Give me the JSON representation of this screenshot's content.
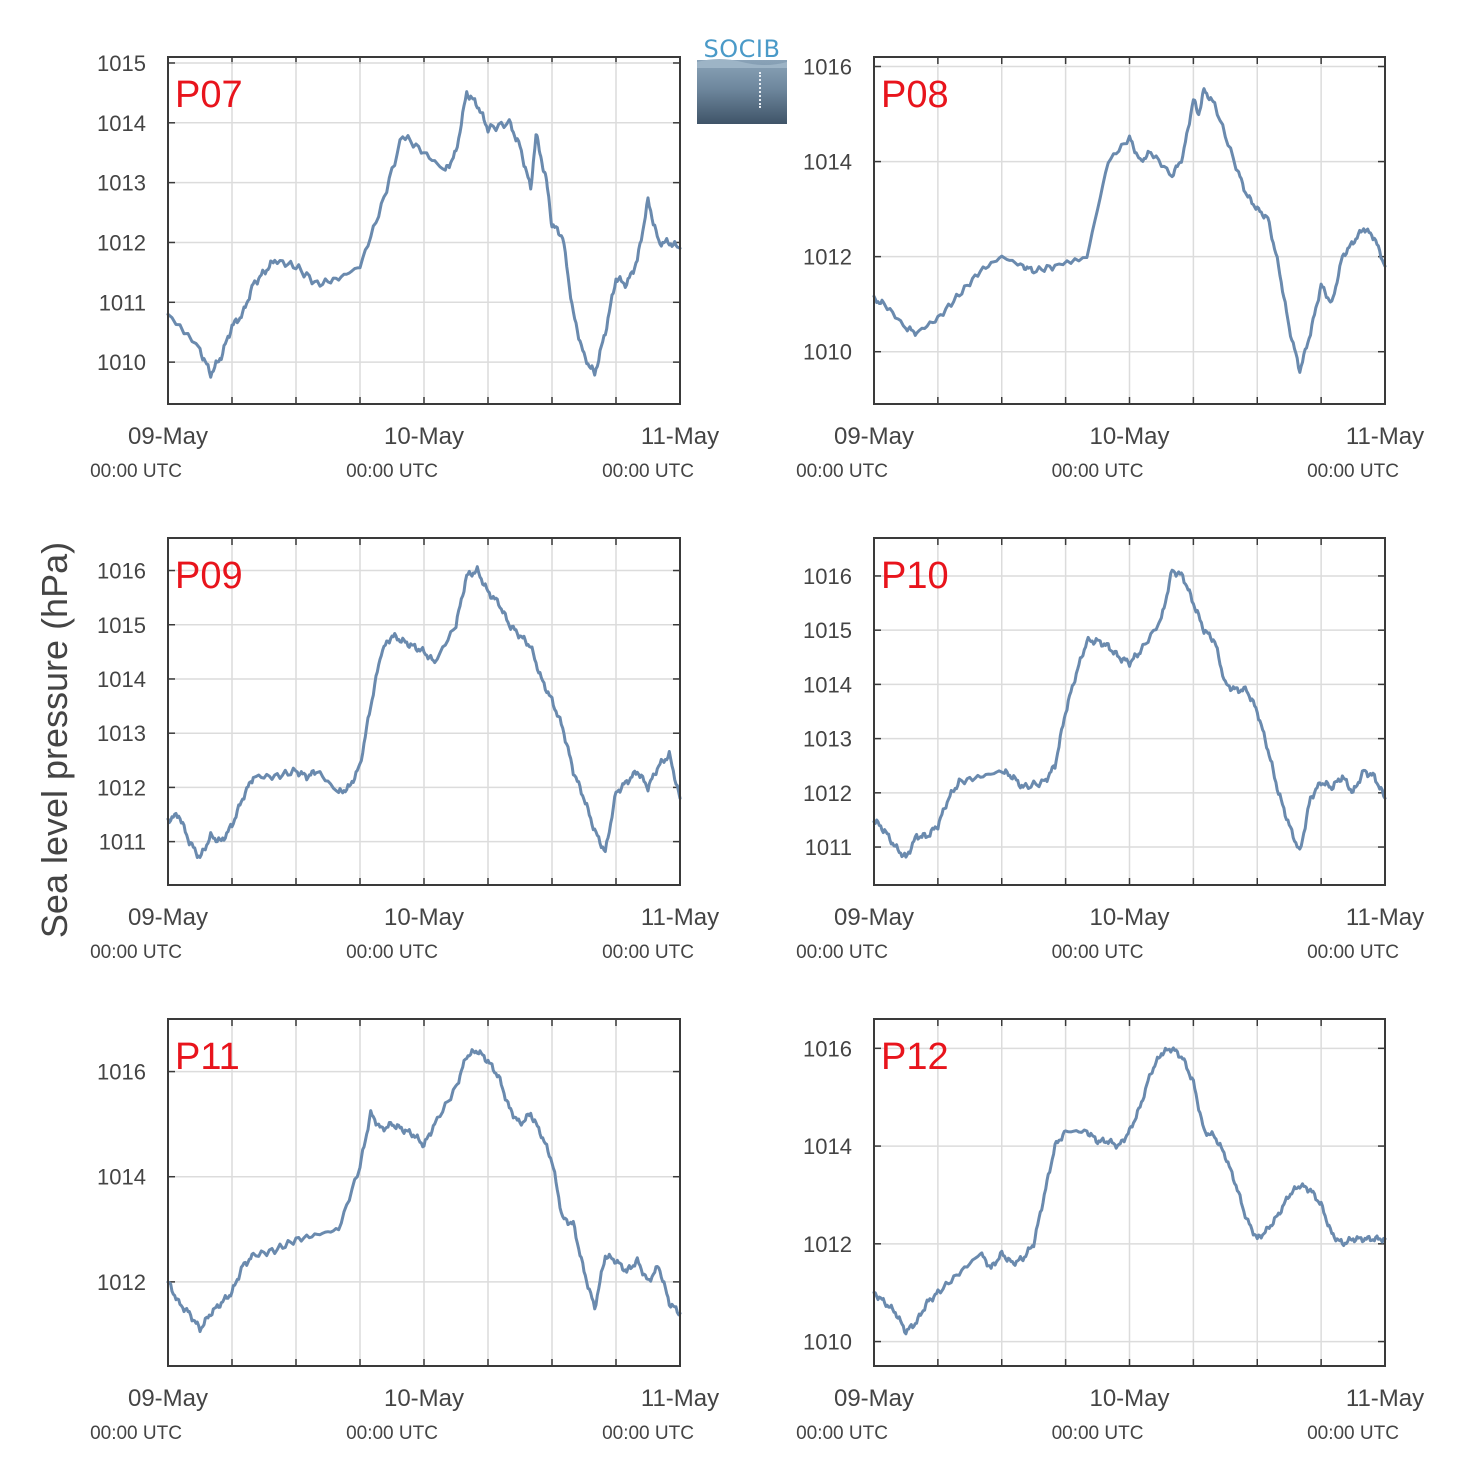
{
  "ylabel": "Sea level pressure (hPa)",
  "logo": {
    "text": "SOCIB"
  },
  "chart_data": [
    {
      "type": "line",
      "label": "P07",
      "xlim": [
        "09-May 00:00 UTC",
        "11-May 00:00 UTC"
      ],
      "x_ticks": [
        {
          "date": "09-May",
          "time": "00:00 UTC"
        },
        {
          "date": "10-May",
          "time": "00:00 UTC"
        },
        {
          "date": "11-May",
          "time": "00:00 UTC"
        }
      ],
      "x_hours": [
        0,
        3,
        4,
        5,
        6,
        7,
        8,
        9,
        10,
        12,
        14,
        16,
        18,
        20,
        22,
        24,
        26,
        27,
        28,
        29,
        30,
        32,
        33,
        34,
        34.5,
        35,
        35.5,
        36,
        37,
        38,
        39,
        40,
        41,
        42,
        43,
        44,
        45,
        46,
        47,
        48
      ],
      "y": [
        1010.8,
        1010.2,
        1009.8,
        1010.1,
        1010.6,
        1010.8,
        1011.3,
        1011.5,
        1011.7,
        1011.6,
        1011.3,
        1011.4,
        1011.6,
        1012.6,
        1013.8,
        1013.5,
        1013.2,
        1013.5,
        1014.5,
        1014.3,
        1013.9,
        1014.0,
        1013.6,
        1012.9,
        1013.8,
        1013.4,
        1013.0,
        1012.3,
        1012.1,
        1010.8,
        1010.1,
        1009.8,
        1010.5,
        1011.4,
        1011.3,
        1011.7,
        1012.7,
        1012.0,
        1012.0,
        1011.9
      ],
      "yticks": [
        1010,
        1011,
        1012,
        1013,
        1014,
        1015
      ],
      "ylim": [
        1009.3,
        1015.1
      ],
      "grid": true
    },
    {
      "type": "line",
      "label": "P08",
      "xlim": [
        "09-May 00:00 UTC",
        "11-May 00:00 UTC"
      ],
      "x_ticks": [
        {
          "date": "09-May",
          "time": "00:00 UTC"
        },
        {
          "date": "10-May",
          "time": "00:00 UTC"
        },
        {
          "date": "11-May",
          "time": "00:00 UTC"
        }
      ],
      "x_hours": [
        0,
        1,
        3,
        4,
        6,
        8,
        10,
        12,
        14,
        15,
        17,
        20,
        22,
        24,
        25,
        26,
        28,
        29,
        30,
        30.5,
        31,
        32,
        34,
        35,
        36,
        37,
        38,
        39,
        40,
        41,
        42,
        43,
        44,
        45,
        46,
        47,
        48
      ],
      "y": [
        1011.1,
        1011.0,
        1010.5,
        1010.4,
        1010.7,
        1011.2,
        1011.7,
        1012.0,
        1011.8,
        1011.7,
        1011.8,
        1012.0,
        1014.0,
        1014.5,
        1014.0,
        1014.2,
        1013.7,
        1014.1,
        1015.3,
        1015.0,
        1015.5,
        1015.2,
        1013.9,
        1013.3,
        1013.0,
        1012.8,
        1011.8,
        1010.5,
        1009.6,
        1010.4,
        1011.4,
        1011.0,
        1012.0,
        1012.3,
        1012.6,
        1012.4,
        1011.8
      ],
      "yticks": [
        1010,
        1012,
        1014,
        1016
      ],
      "ylim": [
        1008.9,
        1016.2
      ],
      "grid": true
    },
    {
      "type": "line",
      "label": "P09",
      "xlim": [
        "09-May 00:00 UTC",
        "11-May 00:00 UTC"
      ],
      "x_hours": [
        0,
        1,
        2,
        3,
        4,
        5,
        6,
        7,
        8,
        10,
        12,
        13,
        14,
        16,
        17,
        18,
        19,
        20,
        21,
        22,
        23,
        24,
        25,
        27,
        28,
        29,
        30,
        31,
        32,
        33,
        34,
        35,
        36,
        37,
        38,
        39,
        40,
        41,
        42,
        43,
        44,
        45,
        46,
        47,
        48
      ],
      "x_ticks": [
        {
          "date": "09-May",
          "time": "00:00 UTC"
        },
        {
          "date": "10-May",
          "time": "00:00 UTC"
        },
        {
          "date": "11-May",
          "time": "00:00 UTC"
        }
      ],
      "y": [
        1011.4,
        1011.5,
        1011.0,
        1010.7,
        1011.1,
        1011.0,
        1011.3,
        1011.8,
        1012.2,
        1012.2,
        1012.3,
        1012.2,
        1012.3,
        1011.9,
        1012.0,
        1012.4,
        1013.5,
        1014.5,
        1014.8,
        1014.7,
        1014.6,
        1014.5,
        1014.3,
        1015.0,
        1015.9,
        1016.0,
        1015.6,
        1015.4,
        1015.0,
        1014.8,
        1014.6,
        1014.0,
        1013.6,
        1013.1,
        1012.3,
        1011.8,
        1011.2,
        1010.8,
        1011.9,
        1012.1,
        1012.3,
        1012.0,
        1012.4,
        1012.6,
        1011.8
      ],
      "yticks": [
        1011,
        1012,
        1013,
        1014,
        1015,
        1016
      ],
      "ylim": [
        1010.2,
        1016.6
      ],
      "grid": true
    },
    {
      "type": "line",
      "label": "P10",
      "xlim": [
        "09-May 00:00 UTC",
        "11-May 00:00 UTC"
      ],
      "x_ticks": [
        {
          "date": "09-May",
          "time": "00:00 UTC"
        },
        {
          "date": "10-May",
          "time": "00:00 UTC"
        },
        {
          "date": "11-May",
          "time": "00:00 UTC"
        }
      ],
      "x_hours": [
        0,
        1,
        2,
        3,
        4,
        5,
        6,
        7,
        8,
        10,
        12,
        13,
        14,
        16,
        17,
        18,
        19,
        20,
        21,
        22,
        23,
        24,
        25,
        27,
        28,
        29,
        30,
        31,
        32,
        33,
        34,
        35,
        36,
        37,
        38,
        39,
        40,
        41,
        42,
        43,
        44,
        45,
        46,
        47,
        48
      ],
      "y": [
        1011.5,
        1011.3,
        1011.0,
        1010.8,
        1011.2,
        1011.2,
        1011.4,
        1011.9,
        1012.2,
        1012.3,
        1012.4,
        1012.3,
        1012.1,
        1012.2,
        1012.5,
        1013.5,
        1014.2,
        1014.8,
        1014.8,
        1014.7,
        1014.5,
        1014.4,
        1014.6,
        1015.2,
        1016.1,
        1016.0,
        1015.5,
        1015.0,
        1014.8,
        1014.0,
        1013.9,
        1013.9,
        1013.5,
        1012.8,
        1012.0,
        1011.4,
        1010.9,
        1011.9,
        1012.2,
        1012.1,
        1012.3,
        1012.0,
        1012.4,
        1012.3,
        1011.9
      ],
      "yticks": [
        1011,
        1012,
        1013,
        1014,
        1015,
        1016
      ],
      "ylim": [
        1010.3,
        1016.7
      ],
      "grid": true
    },
    {
      "type": "line",
      "label": "P11",
      "xlim": [
        "09-May 00:00 UTC",
        "11-May 00:00 UTC"
      ],
      "x_ticks": [
        {
          "date": "09-May",
          "time": "00:00 UTC"
        },
        {
          "date": "10-May",
          "time": "00:00 UTC"
        },
        {
          "date": "11-May",
          "time": "00:00 UTC"
        }
      ],
      "x_hours": [
        0,
        1,
        2,
        3,
        4,
        5,
        6,
        7,
        8,
        10,
        12,
        14,
        16,
        18,
        19,
        20,
        21,
        22,
        23,
        24,
        25,
        27,
        28,
        29,
        30,
        31,
        32,
        33,
        34,
        35,
        36,
        37,
        38,
        39,
        40,
        41,
        42,
        43,
        44,
        45,
        46,
        47,
        48
      ],
      "y": [
        1012.0,
        1011.6,
        1011.4,
        1011.1,
        1011.4,
        1011.6,
        1011.8,
        1012.3,
        1012.5,
        1012.6,
        1012.8,
        1012.9,
        1013.0,
        1014.2,
        1015.2,
        1014.9,
        1015.0,
        1014.9,
        1014.8,
        1014.6,
        1015.0,
        1015.7,
        1016.3,
        1016.4,
        1016.2,
        1015.9,
        1015.3,
        1015.0,
        1015.2,
        1014.8,
        1014.3,
        1013.2,
        1013.1,
        1012.2,
        1011.5,
        1012.5,
        1012.4,
        1012.2,
        1012.4,
        1012.0,
        1012.3,
        1011.6,
        1011.4
      ],
      "yticks": [
        1012,
        1014,
        1016
      ],
      "ylim": [
        1010.4,
        1017.0
      ],
      "grid": true
    },
    {
      "type": "line",
      "label": "P12",
      "xlim": [
        "09-May 00:00 UTC",
        "11-May 00:00 UTC"
      ],
      "x_ticks": [
        {
          "date": "09-May",
          "time": "00:00 UTC"
        },
        {
          "date": "10-May",
          "time": "00:00 UTC"
        },
        {
          "date": "11-May",
          "time": "00:00 UTC"
        }
      ],
      "x_hours": [
        0,
        1,
        2,
        3,
        4,
        5,
        6,
        8,
        10,
        11,
        12,
        13,
        14,
        15,
        16,
        17,
        18,
        20,
        21,
        22,
        23,
        24,
        25,
        26,
        27,
        28,
        29,
        30,
        31,
        32,
        33,
        34,
        35,
        36,
        37,
        38,
        39,
        40,
        41,
        42,
        43,
        44,
        45,
        46,
        47,
        48
      ],
      "y": [
        1011.0,
        1010.8,
        1010.6,
        1010.2,
        1010.4,
        1010.8,
        1011.0,
        1011.4,
        1011.8,
        1011.5,
        1011.8,
        1011.6,
        1011.7,
        1012.0,
        1013.0,
        1014.0,
        1014.3,
        1014.3,
        1014.1,
        1014.1,
        1014.0,
        1014.3,
        1014.8,
        1015.5,
        1015.9,
        1016.0,
        1015.8,
        1015.3,
        1014.3,
        1014.2,
        1013.8,
        1013.2,
        1012.5,
        1012.1,
        1012.3,
        1012.6,
        1013.0,
        1013.2,
        1013.1,
        1012.8,
        1012.2,
        1012.0,
        1012.1,
        1012.1,
        1012.1,
        1012.1
      ],
      "yticks": [
        1010,
        1012,
        1014,
        1016
      ],
      "ylim": [
        1009.5,
        1016.6
      ],
      "grid": true
    }
  ],
  "colors": {
    "series": "#6a8aae",
    "label": "#e8141c",
    "grid": "#dcdcdc",
    "axis": "#3a3a3a",
    "text": "#444444"
  }
}
